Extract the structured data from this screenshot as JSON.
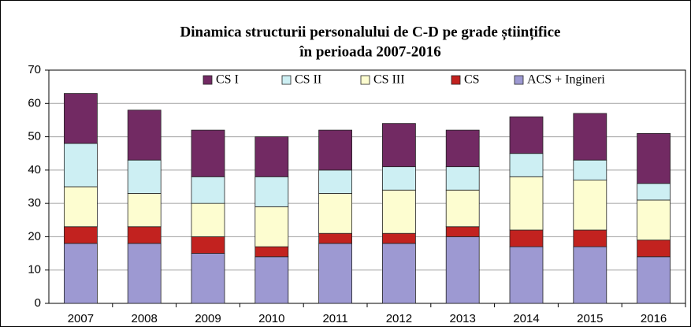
{
  "chart_data": {
    "type": "stacked_bar",
    "title": [
      "Dinamica structurii personalului de C-D pe grade științifice",
      "în perioada 2007-2016"
    ],
    "categories": [
      "2007",
      "2008",
      "2009",
      "2010",
      "2011",
      "2012",
      "2013",
      "2014",
      "2015",
      "2016"
    ],
    "series": [
      {
        "name": "CS I",
        "color": "#722a63",
        "values": [
          15,
          15,
          14,
          12,
          12,
          13,
          11,
          11,
          14,
          15
        ]
      },
      {
        "name": "CS II",
        "color": "#cdeff3",
        "values": [
          13,
          10,
          8,
          9,
          7,
          7,
          7,
          7,
          6,
          5
        ]
      },
      {
        "name": "CS III",
        "color": "#fdfdd0",
        "values": [
          12,
          10,
          10,
          12,
          12,
          13,
          11,
          16,
          15,
          12
        ]
      },
      {
        "name": "CS",
        "color": "#c2221f",
        "values": [
          5,
          5,
          5,
          3,
          3,
          3,
          3,
          5,
          5,
          5
        ]
      },
      {
        "name": "ACS + Ingineri",
        "color": "#9d99d2",
        "values": [
          18,
          18,
          15,
          14,
          18,
          18,
          20,
          17,
          17,
          14
        ]
      }
    ],
    "ylim": [
      0,
      70
    ],
    "yticks": [
      0,
      10,
      20,
      30,
      40,
      50,
      60,
      70
    ],
    "grid": true
  }
}
